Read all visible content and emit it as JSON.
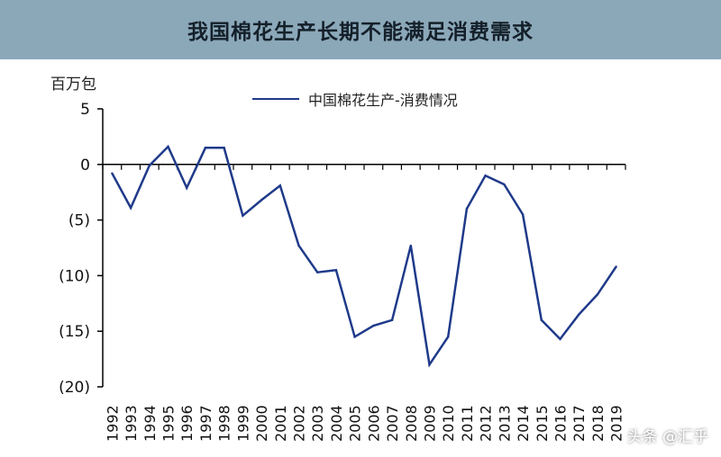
{
  "header": {
    "title": "我国棉花生产长期不能满足消费需求"
  },
  "watermark": "头条 @汇乎",
  "colors": {
    "header_bg": "#8ba8b9",
    "series_line": "#1f3a8a"
  },
  "chart_data": {
    "type": "line",
    "title": "我国棉花生产长期不能满足消费需求",
    "ylabel": "百万包",
    "xlabel": "",
    "ylim": [
      -20,
      5
    ],
    "yticks": [
      5,
      0,
      -5,
      -10,
      -15,
      -20
    ],
    "ytick_labels": [
      "5",
      "0",
      "(5)",
      "(10)",
      "(15)",
      "(20)"
    ],
    "categories": [
      "1992",
      "1993",
      "1994",
      "1995",
      "1996",
      "1997",
      "1998",
      "1999",
      "2000",
      "2001",
      "2002",
      "2003",
      "2004",
      "2005",
      "2006",
      "2007",
      "2008",
      "2009",
      "2010",
      "2011",
      "2012",
      "2013",
      "2014",
      "2015",
      "2016",
      "2017",
      "2018",
      "2019"
    ],
    "legend_position": "top-center",
    "grid": false,
    "series": [
      {
        "name": "中国棉花生产-消费情况",
        "values": [
          -0.8,
          -3.9,
          -0.1,
          1.6,
          -2.1,
          1.5,
          1.5,
          -4.6,
          -3.2,
          -1.9,
          -7.3,
          -9.7,
          -9.5,
          -15.5,
          -14.5,
          -14.0,
          -7.3,
          -18.0,
          -15.5,
          -4.0,
          -1.0,
          -1.8,
          -4.5,
          -14.0,
          -15.7,
          -13.5,
          -11.7,
          -9.2
        ]
      }
    ]
  }
}
